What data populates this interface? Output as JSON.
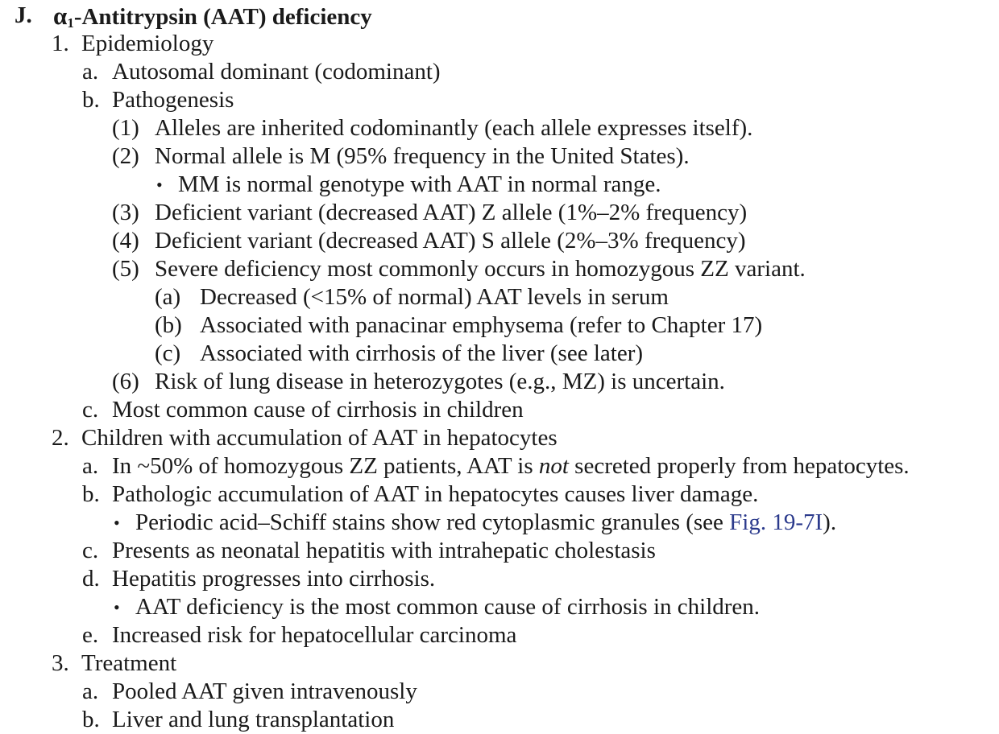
{
  "heading": {
    "label": "J.",
    "alpha": "α",
    "sub": "1",
    "title": "-Antitrypsin (AAT) deficiency"
  },
  "s1": {
    "label": "1.",
    "title": "Epidemiology",
    "a": {
      "label": "a.",
      "text": "Autosomal dominant (codominant)"
    },
    "b": {
      "label": "b.",
      "text": "Pathogenesis",
      "p1": {
        "label": "(1)",
        "text": "Alleles are inherited codominantly (each allele expresses itself)."
      },
      "p2": {
        "label": "(2)",
        "text": "Normal allele is M (95% frequency in the United States).",
        "bullet": "•",
        "bullet_text": "MM is normal genotype with AAT in normal range."
      },
      "p3": {
        "label": "(3)",
        "text": "Deficient variant (decreased AAT) Z allele (1%–2% frequency)"
      },
      "p4": {
        "label": "(4)",
        "text": "Deficient variant (decreased AAT) S allele (2%–3% frequency)"
      },
      "p5": {
        "label": "(5)",
        "text": "Severe deficiency most commonly occurs in homozygous ZZ variant.",
        "a": {
          "label": "(a)",
          "text": "Decreased (<15% of normal) AAT levels in serum"
        },
        "b": {
          "label": "(b)",
          "text": "Associated with panacinar emphysema (refer to Chapter 17)"
        },
        "c": {
          "label": "(c)",
          "text": "Associated with cirrhosis of the liver (see later)"
        }
      },
      "p6": {
        "label": "(6)",
        "text": "Risk of lung disease in heterozygotes (e.g., MZ) is uncertain."
      }
    },
    "c": {
      "label": "c.",
      "text": "Most common cause of cirrhosis in children"
    }
  },
  "s2": {
    "label": "2.",
    "title": "Children with accumulation of AAT in hepatocytes",
    "a": {
      "label": "a.",
      "pre": "In ~50% of homozygous ZZ patients, AAT is ",
      "em": "not",
      "post": " secreted properly from hepatocytes."
    },
    "b": {
      "label": "b.",
      "text": "Pathologic accumulation of AAT in hepatocytes causes liver damage.",
      "bullet": "•",
      "bullet_pre": "Periodic acid–Schiff stains show red cytoplasmic granules (see ",
      "bullet_link": "Fig. 19-7I",
      "bullet_post": ")."
    },
    "c": {
      "label": "c.",
      "text": "Presents as neonatal hepatitis with intrahepatic cholestasis"
    },
    "d": {
      "label": "d.",
      "text": "Hepatitis progresses into cirrhosis.",
      "bullet": "•",
      "bullet_text": "AAT deficiency is the most common cause of cirrhosis in children."
    },
    "e": {
      "label": "e.",
      "text": "Increased risk for hepatocellular carcinoma"
    }
  },
  "s3": {
    "label": "3.",
    "title": "Treatment",
    "a": {
      "label": "a.",
      "text": "Pooled AAT given intravenously"
    },
    "b": {
      "label": "b.",
      "text": "Liver and lung transplantation"
    }
  },
  "colors": {
    "text": "#1a1a1a",
    "link": "#2b3a8c"
  }
}
